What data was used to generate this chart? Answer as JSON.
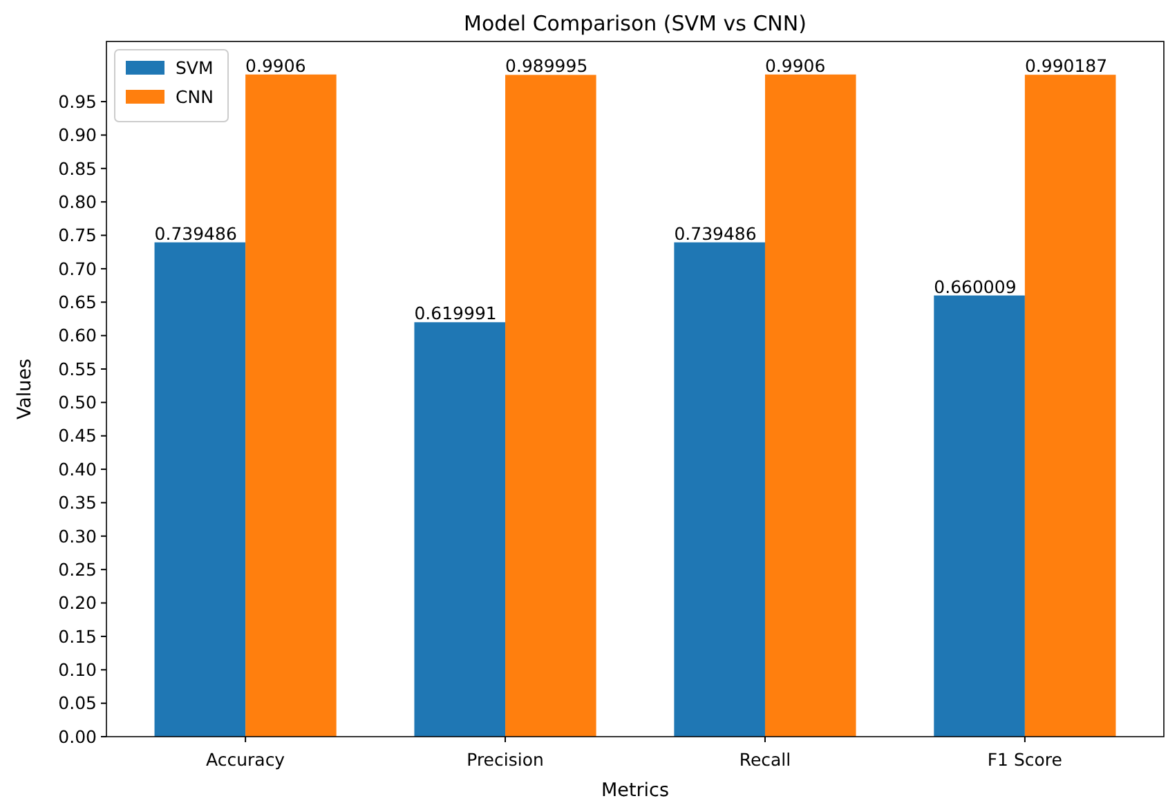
{
  "chart_data": {
    "type": "bar",
    "title": "Model Comparison (SVM vs CNN)",
    "xlabel": "Metrics",
    "ylabel": "Values",
    "categories": [
      "Accuracy",
      "Precision",
      "Recall",
      "F1 Score"
    ],
    "series": [
      {
        "name": "SVM",
        "color": "#1f77b4",
        "values": [
          0.739486,
          0.619991,
          0.739486,
          0.660009
        ]
      },
      {
        "name": "CNN",
        "color": "#ff7f0e",
        "values": [
          0.9906,
          0.989995,
          0.9906,
          0.990187
        ]
      }
    ],
    "ylim": [
      0,
      1.04
    ],
    "yticks": [
      {
        "value": 0,
        "label": "0.00"
      },
      {
        "value": 0.05,
        "label": "0.05"
      },
      {
        "value": 0.1,
        "label": "0.10"
      },
      {
        "value": 0.15,
        "label": "0.15"
      },
      {
        "value": 0.2,
        "label": "0.20"
      },
      {
        "value": 0.25,
        "label": "0.25"
      },
      {
        "value": 0.3,
        "label": "0.30"
      },
      {
        "value": 0.35,
        "label": "0.35"
      },
      {
        "value": 0.4,
        "label": "0.40"
      },
      {
        "value": 0.45,
        "label": "0.45"
      },
      {
        "value": 0.5,
        "label": "0.50"
      },
      {
        "value": 0.55,
        "label": "0.55"
      },
      {
        "value": 0.6,
        "label": "0.60"
      },
      {
        "value": 0.65,
        "label": "0.65"
      },
      {
        "value": 0.7,
        "label": "0.70"
      },
      {
        "value": 0.75,
        "label": "0.75"
      },
      {
        "value": 0.8,
        "label": "0.80"
      },
      {
        "value": 0.85,
        "label": "0.85"
      },
      {
        "value": 0.9,
        "label": "0.90"
      },
      {
        "value": 0.95,
        "label": "0.95"
      }
    ],
    "data_labels": true,
    "legend": "top left",
    "grid": false
  }
}
